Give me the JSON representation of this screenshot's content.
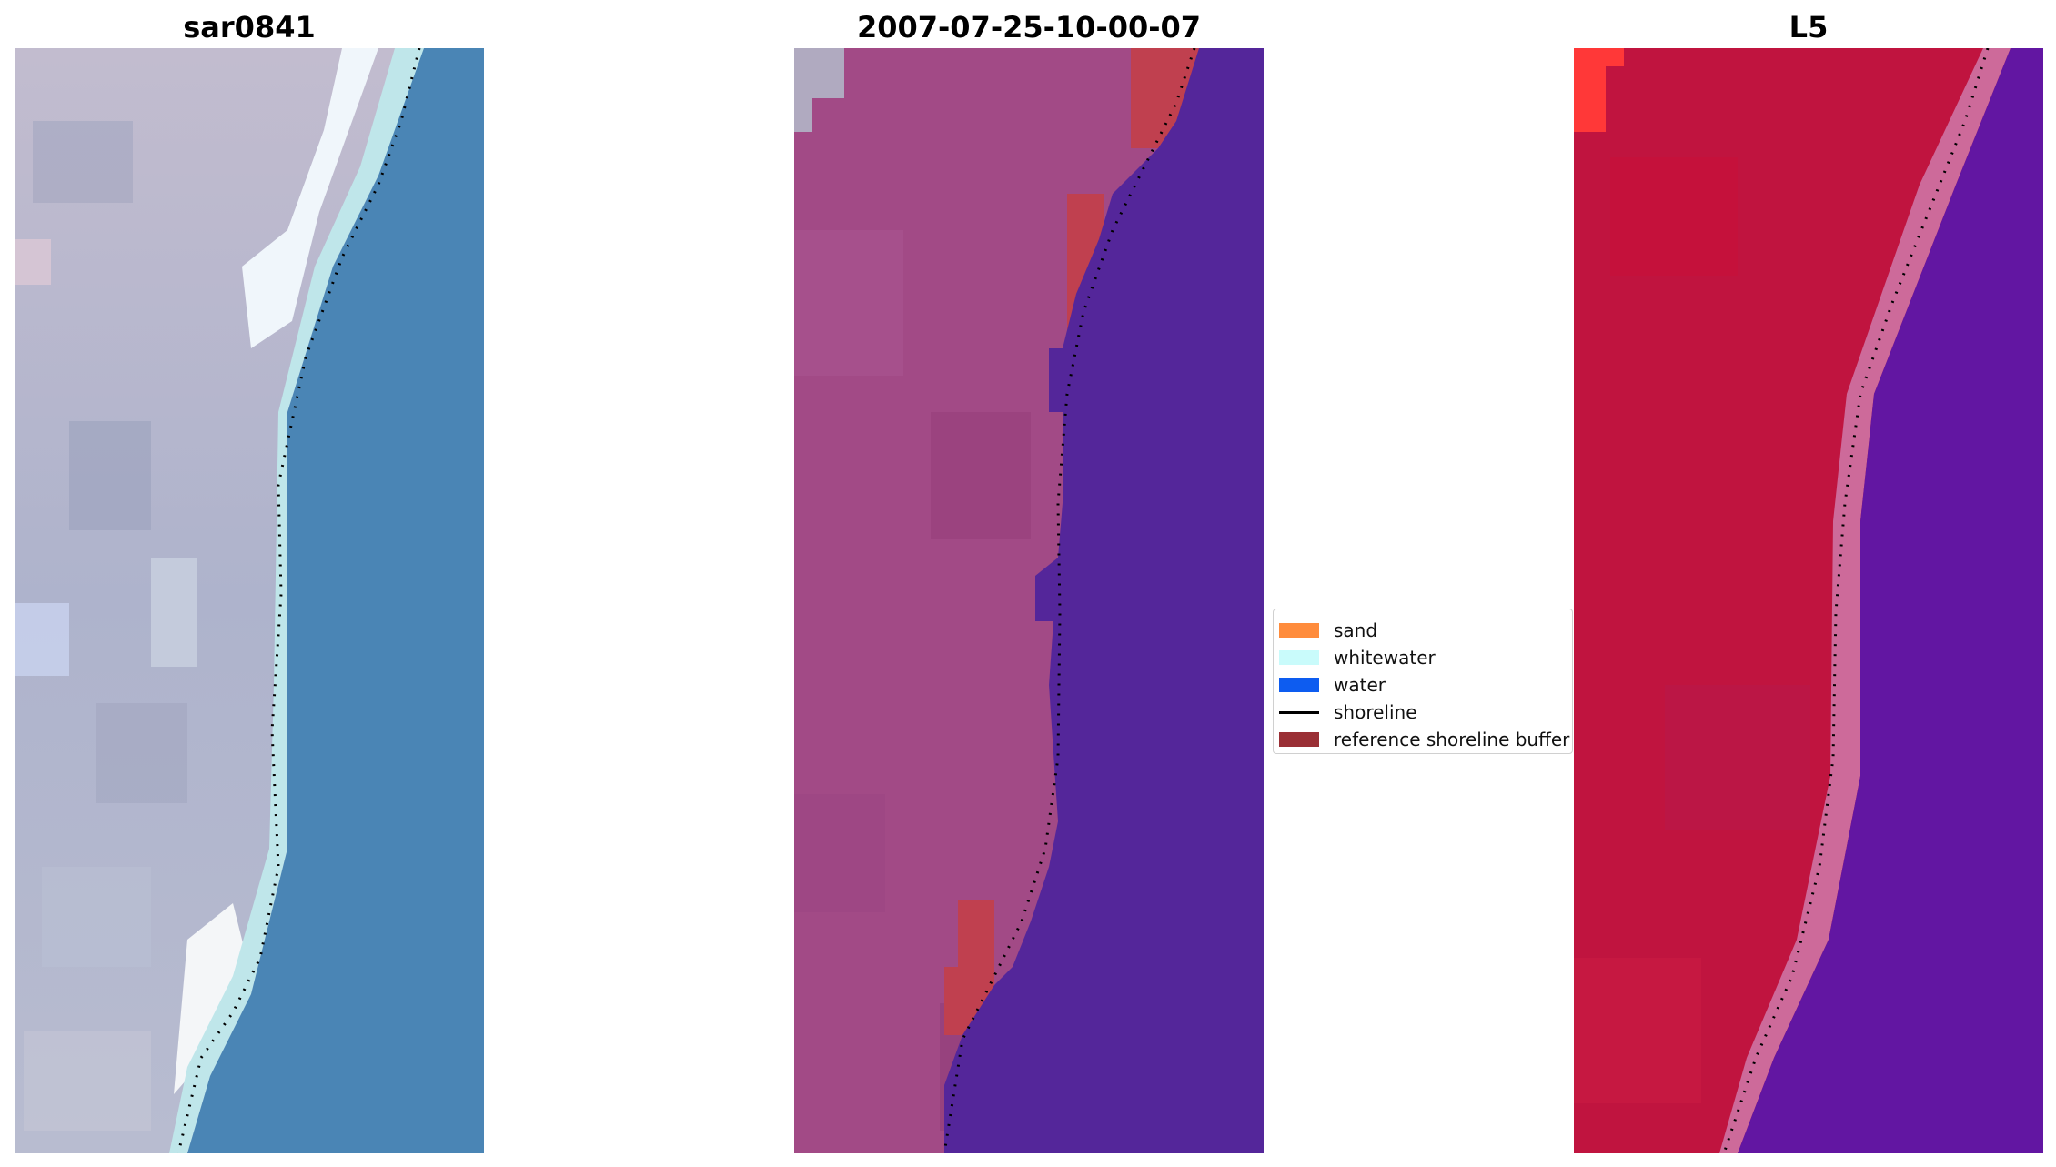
{
  "figure": {
    "panels": [
      {
        "title": "sar0841",
        "kind": "rgb-image",
        "colors": {
          "land": "#b3b6cc",
          "water": "#4a85b5",
          "whitewater": "#f0f6fb",
          "surf": "#bfe6ea"
        }
      },
      {
        "title": "2007-07-25-10-00-07",
        "kind": "classified-image",
        "colors": {
          "land": "#a24a86",
          "water": "#54269a",
          "buffer": "#c0404f",
          "grey": "#b0aac0"
        }
      },
      {
        "title": "L5",
        "kind": "nir-image",
        "colors": {
          "land": "#c0143f",
          "water": "#6216a2",
          "transition": "#cd6a9a",
          "sandTop": "#ff3838"
        }
      }
    ],
    "shoreline_color": "#000000",
    "legend": {
      "items": [
        {
          "label": "sand",
          "color": "#ff8c3c",
          "kind": "patch"
        },
        {
          "label": "whitewater",
          "color": "#c9fbfb",
          "kind": "patch"
        },
        {
          "label": "water",
          "color": "#0d5cf0",
          "kind": "patch"
        },
        {
          "label": "shoreline",
          "color": "#000000",
          "kind": "line"
        },
        {
          "label": "reference shoreline buffer",
          "color": "#9a2f35",
          "kind": "patch"
        }
      ]
    }
  }
}
